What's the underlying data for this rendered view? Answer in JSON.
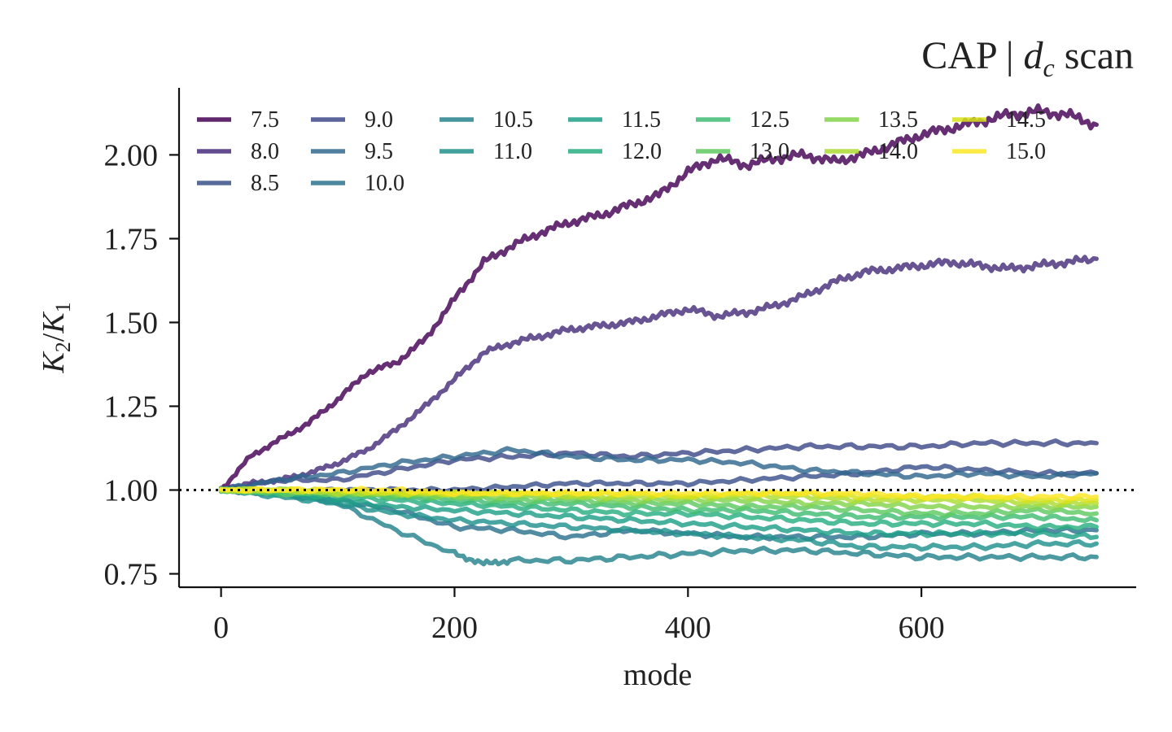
{
  "chart_data": {
    "type": "line",
    "title": "CAP",
    "title_math": "d",
    "title_math_sub": "c",
    "title_suffix": "scan",
    "xlabel": "mode",
    "ylabel_main": "K",
    "ylabel_sub1": "2",
    "ylabel_sep": "/",
    "ylabel_sub2": "1",
    "xlim": [
      -36,
      784
    ],
    "ylim": [
      0.71,
      2.2
    ],
    "xticks": [
      0,
      200,
      400,
      600
    ],
    "xtick_labels": [
      "0",
      "200",
      "400",
      "600"
    ],
    "yticks": [
      0.75,
      1.0,
      1.25,
      1.5,
      1.75,
      2.0
    ],
    "ytick_labels": [
      "0.75",
      "1.00",
      "1.25",
      "1.50",
      "1.75",
      "2.00"
    ],
    "reference_line": {
      "y": 1.0,
      "style": "dotted",
      "color": "#000000"
    },
    "legend": {
      "placement": "top-left",
      "columns": 7
    },
    "series": [
      {
        "name": "7.5",
        "color": "#440154",
        "x": [
          0,
          25,
          50,
          75,
          100,
          125,
          150,
          175,
          200,
          225,
          250,
          275,
          300,
          325,
          350,
          375,
          400,
          425,
          450,
          475,
          500,
          525,
          550,
          575,
          600,
          625,
          650,
          675,
          700,
          725,
          750
        ],
        "y": [
          1.0,
          1.1,
          1.15,
          1.2,
          1.27,
          1.35,
          1.38,
          1.45,
          1.57,
          1.68,
          1.73,
          1.77,
          1.8,
          1.82,
          1.85,
          1.88,
          1.95,
          1.99,
          1.97,
          1.99,
          2.0,
          1.98,
          2.0,
          2.03,
          2.06,
          2.08,
          2.1,
          2.12,
          2.13,
          2.12,
          2.09
        ]
      },
      {
        "name": "8.0",
        "color": "#472d7b",
        "x": [
          0,
          25,
          50,
          75,
          100,
          125,
          150,
          175,
          200,
          225,
          250,
          275,
          300,
          325,
          350,
          375,
          400,
          425,
          450,
          475,
          500,
          525,
          550,
          575,
          600,
          625,
          650,
          675,
          700,
          725,
          750
        ],
        "y": [
          1.0,
          1.02,
          1.03,
          1.05,
          1.08,
          1.12,
          1.18,
          1.25,
          1.33,
          1.41,
          1.44,
          1.46,
          1.48,
          1.49,
          1.5,
          1.52,
          1.54,
          1.52,
          1.53,
          1.55,
          1.58,
          1.62,
          1.65,
          1.66,
          1.67,
          1.68,
          1.67,
          1.66,
          1.67,
          1.68,
          1.69
        ]
      },
      {
        "name": "8.5",
        "color": "#3b528b",
        "x": [
          0,
          50,
          100,
          150,
          200,
          250,
          300,
          350,
          400,
          450,
          500,
          550,
          600,
          650,
          700,
          750
        ],
        "y": [
          1.0,
          0.99,
          1.0,
          1.0,
          1.0,
          1.01,
          1.02,
          1.02,
          1.02,
          1.03,
          1.04,
          1.05,
          1.07,
          1.06,
          1.05,
          1.05
        ]
      },
      {
        "name": "9.0",
        "color": "#3e4a89",
        "x": [
          0,
          50,
          100,
          150,
          200,
          250,
          300,
          350,
          400,
          450,
          500,
          550,
          600,
          650,
          700,
          750
        ],
        "y": [
          1.0,
          1.03,
          1.03,
          1.06,
          1.09,
          1.1,
          1.11,
          1.1,
          1.11,
          1.12,
          1.13,
          1.13,
          1.13,
          1.14,
          1.14,
          1.14
        ]
      },
      {
        "name": "9.5",
        "color": "#31688e",
        "x": [
          0,
          50,
          100,
          150,
          200,
          250,
          300,
          350,
          400,
          450,
          500,
          550,
          600,
          650,
          700,
          750
        ],
        "y": [
          1.0,
          1.03,
          1.05,
          1.08,
          1.1,
          1.12,
          1.1,
          1.09,
          1.09,
          1.08,
          1.06,
          1.05,
          1.04,
          1.05,
          1.04,
          1.05
        ]
      },
      {
        "name": "10.0",
        "color": "#2c728e",
        "x": [
          0,
          50,
          100,
          150,
          200,
          250,
          300,
          350,
          400,
          450,
          500,
          550,
          600,
          650,
          700,
          750
        ],
        "y": [
          1.0,
          0.99,
          0.97,
          0.94,
          0.89,
          0.88,
          0.86,
          0.88,
          0.87,
          0.86,
          0.86,
          0.86,
          0.87,
          0.87,
          0.88,
          0.88
        ]
      },
      {
        "name": "10.5",
        "color": "#26828e",
        "x": [
          0,
          50,
          100,
          150,
          200,
          225,
          250,
          300,
          350,
          400,
          450,
          500,
          550,
          600,
          650,
          700,
          750
        ],
        "y": [
          1.0,
          0.99,
          0.96,
          0.88,
          0.81,
          0.78,
          0.79,
          0.79,
          0.8,
          0.81,
          0.82,
          0.82,
          0.81,
          0.8,
          0.8,
          0.8,
          0.8
        ]
      },
      {
        "name": "11.0",
        "color": "#21918c",
        "x": [
          0,
          50,
          100,
          150,
          200,
          250,
          300,
          350,
          400,
          450,
          500,
          550,
          600,
          650,
          700,
          750
        ],
        "y": [
          1.0,
          0.98,
          0.96,
          0.93,
          0.91,
          0.9,
          0.89,
          0.88,
          0.87,
          0.86,
          0.85,
          0.83,
          0.83,
          0.83,
          0.84,
          0.84
        ]
      },
      {
        "name": "11.5",
        "color": "#1fa088",
        "x": [
          0,
          50,
          100,
          150,
          200,
          250,
          300,
          350,
          400,
          450,
          500,
          550,
          600,
          650,
          700,
          750
        ],
        "y": [
          1.0,
          0.99,
          0.97,
          0.95,
          0.94,
          0.93,
          0.92,
          0.91,
          0.9,
          0.89,
          0.88,
          0.87,
          0.87,
          0.87,
          0.87,
          0.86
        ]
      },
      {
        "name": "12.0",
        "color": "#28ae80",
        "x": [
          0,
          50,
          100,
          150,
          200,
          250,
          300,
          350,
          400,
          450,
          500,
          550,
          600,
          650,
          700,
          750
        ],
        "y": [
          1.0,
          0.99,
          0.98,
          0.97,
          0.96,
          0.95,
          0.94,
          0.93,
          0.93,
          0.92,
          0.91,
          0.9,
          0.9,
          0.9,
          0.89,
          0.89
        ]
      },
      {
        "name": "12.5",
        "color": "#3fbc73",
        "x": [
          0,
          50,
          100,
          150,
          200,
          250,
          300,
          350,
          400,
          450,
          500,
          550,
          600,
          650,
          700,
          750
        ],
        "y": [
          1.0,
          0.99,
          0.99,
          0.98,
          0.97,
          0.96,
          0.96,
          0.95,
          0.94,
          0.94,
          0.93,
          0.92,
          0.92,
          0.92,
          0.92,
          0.91
        ]
      },
      {
        "name": "13.0",
        "color": "#5ec962",
        "x": [
          0,
          50,
          100,
          150,
          200,
          250,
          300,
          350,
          400,
          450,
          500,
          550,
          600,
          650,
          700,
          750
        ],
        "y": [
          1.0,
          0.99,
          0.99,
          0.98,
          0.98,
          0.97,
          0.97,
          0.96,
          0.96,
          0.95,
          0.95,
          0.94,
          0.93,
          0.93,
          0.94,
          0.93
        ]
      },
      {
        "name": "13.5",
        "color": "#84d44b",
        "x": [
          0,
          50,
          100,
          150,
          200,
          250,
          300,
          350,
          400,
          450,
          500,
          550,
          600,
          650,
          700,
          750
        ],
        "y": [
          1.0,
          1.0,
          0.99,
          0.99,
          0.98,
          0.98,
          0.98,
          0.97,
          0.97,
          0.97,
          0.96,
          0.96,
          0.95,
          0.95,
          0.95,
          0.95
        ]
      },
      {
        "name": "14.0",
        "color": "#addc30",
        "x": [
          0,
          50,
          100,
          150,
          200,
          250,
          300,
          350,
          400,
          450,
          500,
          550,
          600,
          650,
          700,
          750
        ],
        "y": [
          1.0,
          1.0,
          0.99,
          0.99,
          0.99,
          0.99,
          0.98,
          0.98,
          0.98,
          0.98,
          0.98,
          0.97,
          0.97,
          0.97,
          0.96,
          0.96
        ]
      },
      {
        "name": "14.5",
        "color": "#d8e219",
        "x": [
          0,
          50,
          100,
          150,
          200,
          250,
          300,
          350,
          400,
          450,
          500,
          550,
          600,
          650,
          700,
          750
        ],
        "y": [
          1.0,
          1.0,
          1.0,
          0.99,
          0.99,
          0.99,
          0.99,
          0.99,
          0.98,
          0.99,
          0.99,
          0.98,
          0.98,
          0.98,
          0.97,
          0.97
        ]
      },
      {
        "name": "15.0",
        "color": "#fde725",
        "x": [
          0,
          50,
          100,
          150,
          200,
          250,
          300,
          350,
          400,
          450,
          500,
          550,
          600,
          650,
          700,
          750
        ],
        "y": [
          1.0,
          1.0,
          1.0,
          1.0,
          0.99,
          0.99,
          0.99,
          0.99,
          0.99,
          0.99,
          0.99,
          0.99,
          0.98,
          0.98,
          0.98,
          0.98
        ]
      }
    ]
  }
}
